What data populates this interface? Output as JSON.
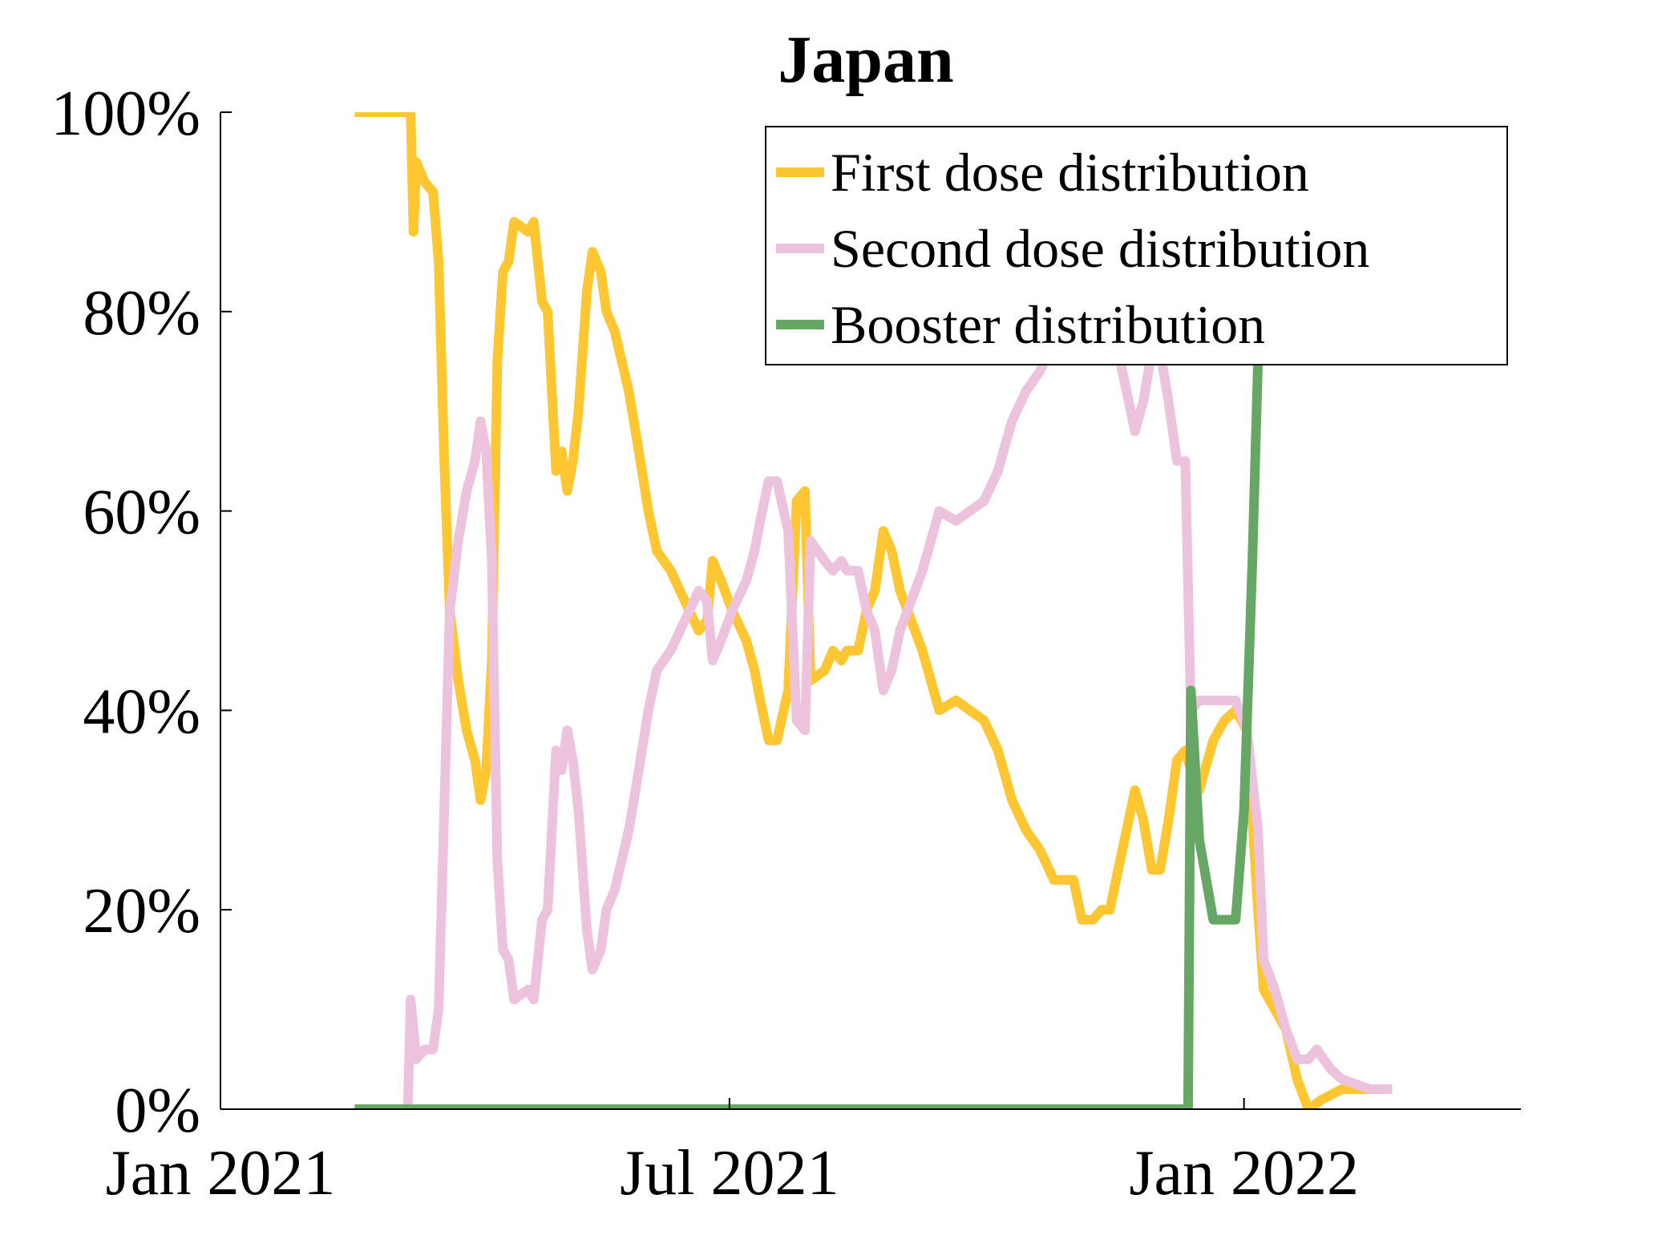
{
  "chart_data": {
    "type": "line",
    "title": "Japan",
    "xlabel": "",
    "ylabel": "",
    "x_unit": "date",
    "xlim": [
      "2020-12-31",
      "2022-04-10"
    ],
    "ylim": [
      0,
      100
    ],
    "x_ticks": [
      {
        "date": "2020-12-31",
        "label": "Jan 2021"
      },
      {
        "date": "2021-07-01",
        "label": "Jul 2021"
      },
      {
        "date": "2022-01-01",
        "label": "Jan 2022"
      }
    ],
    "y_ticks": [
      {
        "value": 0,
        "label": "0%"
      },
      {
        "value": 20,
        "label": "20%"
      },
      {
        "value": 40,
        "label": "40%"
      },
      {
        "value": 60,
        "label": "60%"
      },
      {
        "value": 80,
        "label": "80%"
      },
      {
        "value": 100,
        "label": "100%"
      }
    ],
    "grid": false,
    "legend_position": "top-right",
    "series": [
      {
        "name": "First dose distribution",
        "color": "#FEC630",
        "points": [
          [
            "2021-02-17",
            100
          ],
          [
            "2021-03-09",
            100
          ],
          [
            "2021-03-10",
            88
          ],
          [
            "2021-03-11",
            95
          ],
          [
            "2021-03-14",
            93
          ],
          [
            "2021-03-17",
            92
          ],
          [
            "2021-03-19",
            85
          ],
          [
            "2021-03-21",
            65
          ],
          [
            "2021-03-23",
            50
          ],
          [
            "2021-03-26",
            43
          ],
          [
            "2021-03-29",
            38
          ],
          [
            "2021-04-01",
            35
          ],
          [
            "2021-04-03",
            31
          ],
          [
            "2021-04-05",
            34
          ],
          [
            "2021-04-07",
            45
          ],
          [
            "2021-04-09",
            75
          ],
          [
            "2021-04-11",
            84
          ],
          [
            "2021-04-13",
            85
          ],
          [
            "2021-04-15",
            89
          ],
          [
            "2021-04-20",
            88
          ],
          [
            "2021-04-22",
            89
          ],
          [
            "2021-04-25",
            81
          ],
          [
            "2021-04-27",
            80
          ],
          [
            "2021-04-30",
            64
          ],
          [
            "2021-05-02",
            66
          ],
          [
            "2021-05-04",
            62
          ],
          [
            "2021-05-06",
            65
          ],
          [
            "2021-05-08",
            70
          ],
          [
            "2021-05-11",
            82
          ],
          [
            "2021-05-13",
            86
          ],
          [
            "2021-05-16",
            84
          ],
          [
            "2021-05-18",
            80
          ],
          [
            "2021-05-21",
            78
          ],
          [
            "2021-05-26",
            72
          ],
          [
            "2021-05-29",
            67
          ],
          [
            "2021-06-02",
            60
          ],
          [
            "2021-06-05",
            56
          ],
          [
            "2021-06-10",
            54
          ],
          [
            "2021-06-15",
            51
          ],
          [
            "2021-06-20",
            48
          ],
          [
            "2021-06-23",
            49
          ],
          [
            "2021-06-25",
            55
          ],
          [
            "2021-06-28",
            53
          ],
          [
            "2021-07-02",
            50
          ],
          [
            "2021-07-07",
            47
          ],
          [
            "2021-07-10",
            44
          ],
          [
            "2021-07-12",
            41
          ],
          [
            "2021-07-15",
            37
          ],
          [
            "2021-07-18",
            37
          ],
          [
            "2021-07-22",
            42
          ],
          [
            "2021-07-25",
            61
          ],
          [
            "2021-07-28",
            62
          ],
          [
            "2021-07-30",
            43
          ],
          [
            "2021-08-04",
            44
          ],
          [
            "2021-08-07",
            46
          ],
          [
            "2021-08-10",
            45
          ],
          [
            "2021-08-12",
            46
          ],
          [
            "2021-08-16",
            46
          ],
          [
            "2021-08-19",
            50
          ],
          [
            "2021-08-22",
            52
          ],
          [
            "2021-08-25",
            58
          ],
          [
            "2021-08-28",
            56
          ],
          [
            "2021-08-31",
            52
          ],
          [
            "2021-09-04",
            49
          ],
          [
            "2021-09-08",
            46
          ],
          [
            "2021-09-14",
            40
          ],
          [
            "2021-09-20",
            41
          ],
          [
            "2021-09-25",
            40
          ],
          [
            "2021-09-30",
            39
          ],
          [
            "2021-10-05",
            36
          ],
          [
            "2021-10-10",
            31
          ],
          [
            "2021-10-15",
            28
          ],
          [
            "2021-10-20",
            26
          ],
          [
            "2021-10-25",
            23
          ],
          [
            "2021-11-01",
            23
          ],
          [
            "2021-11-04",
            19
          ],
          [
            "2021-11-08",
            19
          ],
          [
            "2021-11-11",
            20
          ],
          [
            "2021-11-14",
            20
          ],
          [
            "2021-11-17",
            24
          ],
          [
            "2021-11-20",
            28
          ],
          [
            "2021-11-23",
            32
          ],
          [
            "2021-11-26",
            29
          ],
          [
            "2021-11-29",
            24
          ],
          [
            "2021-12-02",
            24
          ],
          [
            "2021-12-05",
            29
          ],
          [
            "2021-12-08",
            35
          ],
          [
            "2021-12-11",
            36
          ],
          [
            "2021-12-13",
            34
          ],
          [
            "2021-12-16",
            32
          ],
          [
            "2021-12-21",
            37
          ],
          [
            "2021-12-25",
            39
          ],
          [
            "2021-12-29",
            40
          ],
          [
            "2022-01-02",
            38
          ],
          [
            "2022-01-06",
            20
          ],
          [
            "2022-01-08",
            12
          ],
          [
            "2022-01-12",
            10
          ],
          [
            "2022-01-16",
            8
          ],
          [
            "2022-01-20",
            3
          ],
          [
            "2022-01-24",
            0
          ],
          [
            "2022-01-29",
            1
          ],
          [
            "2022-02-05",
            2
          ],
          [
            "2022-02-15",
            2
          ],
          [
            "2022-02-23",
            2
          ]
        ]
      },
      {
        "name": "Second dose distribution",
        "color": "#EDC2DC",
        "points": [
          [
            "2021-03-08",
            0
          ],
          [
            "2021-03-09",
            11
          ],
          [
            "2021-03-11",
            5
          ],
          [
            "2021-03-14",
            6
          ],
          [
            "2021-03-17",
            6
          ],
          [
            "2021-03-19",
            10
          ],
          [
            "2021-03-21",
            30
          ],
          [
            "2021-03-23",
            50
          ],
          [
            "2021-03-26",
            57
          ],
          [
            "2021-03-29",
            62
          ],
          [
            "2021-04-01",
            65
          ],
          [
            "2021-04-03",
            69
          ],
          [
            "2021-04-05",
            66
          ],
          [
            "2021-04-07",
            55
          ],
          [
            "2021-04-09",
            25
          ],
          [
            "2021-04-11",
            16
          ],
          [
            "2021-04-13",
            15
          ],
          [
            "2021-04-15",
            11
          ],
          [
            "2021-04-20",
            12
          ],
          [
            "2021-04-22",
            11
          ],
          [
            "2021-04-25",
            19
          ],
          [
            "2021-04-27",
            20
          ],
          [
            "2021-04-30",
            36
          ],
          [
            "2021-05-02",
            34
          ],
          [
            "2021-05-04",
            38
          ],
          [
            "2021-05-06",
            35
          ],
          [
            "2021-05-08",
            30
          ],
          [
            "2021-05-11",
            18
          ],
          [
            "2021-05-13",
            14
          ],
          [
            "2021-05-16",
            16
          ],
          [
            "2021-05-18",
            20
          ],
          [
            "2021-05-21",
            22
          ],
          [
            "2021-05-26",
            28
          ],
          [
            "2021-05-29",
            33
          ],
          [
            "2021-06-02",
            40
          ],
          [
            "2021-06-05",
            44
          ],
          [
            "2021-06-10",
            46
          ],
          [
            "2021-06-15",
            49
          ],
          [
            "2021-06-20",
            52
          ],
          [
            "2021-06-23",
            51
          ],
          [
            "2021-06-25",
            45
          ],
          [
            "2021-06-28",
            47
          ],
          [
            "2021-07-02",
            50
          ],
          [
            "2021-07-07",
            53
          ],
          [
            "2021-07-10",
            56
          ],
          [
            "2021-07-12",
            59
          ],
          [
            "2021-07-15",
            63
          ],
          [
            "2021-07-18",
            63
          ],
          [
            "2021-07-22",
            58
          ],
          [
            "2021-07-25",
            39
          ],
          [
            "2021-07-28",
            38
          ],
          [
            "2021-07-30",
            57
          ],
          [
            "2021-08-04",
            55
          ],
          [
            "2021-08-07",
            54
          ],
          [
            "2021-08-10",
            55
          ],
          [
            "2021-08-12",
            54
          ],
          [
            "2021-08-16",
            54
          ],
          [
            "2021-08-19",
            50
          ],
          [
            "2021-08-22",
            48
          ],
          [
            "2021-08-25",
            42
          ],
          [
            "2021-08-28",
            44
          ],
          [
            "2021-08-31",
            48
          ],
          [
            "2021-09-04",
            51
          ],
          [
            "2021-09-08",
            54
          ],
          [
            "2021-09-14",
            60
          ],
          [
            "2021-09-20",
            59
          ],
          [
            "2021-09-25",
            60
          ],
          [
            "2021-09-30",
            61
          ],
          [
            "2021-10-05",
            64
          ],
          [
            "2021-10-10",
            69
          ],
          [
            "2021-10-15",
            72
          ],
          [
            "2021-10-20",
            74
          ],
          [
            "2021-10-25",
            77
          ],
          [
            "2021-11-01",
            77
          ],
          [
            "2021-11-04",
            81
          ],
          [
            "2021-11-08",
            81
          ],
          [
            "2021-11-11",
            80
          ],
          [
            "2021-11-14",
            80
          ],
          [
            "2021-11-17",
            76
          ],
          [
            "2021-11-20",
            72
          ],
          [
            "2021-11-23",
            68
          ],
          [
            "2021-11-26",
            71
          ],
          [
            "2021-11-29",
            76
          ],
          [
            "2021-12-02",
            76
          ],
          [
            "2021-12-05",
            71
          ],
          [
            "2021-12-08",
            65
          ],
          [
            "2021-12-11",
            65
          ],
          [
            "2021-12-13",
            40
          ],
          [
            "2021-12-16",
            41
          ],
          [
            "2021-12-21",
            41
          ],
          [
            "2021-12-25",
            41
          ],
          [
            "2021-12-29",
            41
          ],
          [
            "2022-01-02",
            38
          ],
          [
            "2022-01-06",
            28
          ],
          [
            "2022-01-08",
            15
          ],
          [
            "2022-01-12",
            12
          ],
          [
            "2022-01-16",
            8
          ],
          [
            "2022-01-20",
            5
          ],
          [
            "2022-01-24",
            5
          ],
          [
            "2022-01-27",
            6
          ],
          [
            "2022-02-01",
            4
          ],
          [
            "2022-02-05",
            3
          ],
          [
            "2022-02-15",
            2
          ],
          [
            "2022-02-23",
            2
          ]
        ]
      },
      {
        "name": "Booster distribution",
        "color": "#66A766",
        "points": [
          [
            "2021-02-17",
            0
          ],
          [
            "2021-12-12",
            0
          ],
          [
            "2021-12-13",
            42
          ],
          [
            "2021-12-16",
            27
          ],
          [
            "2021-12-21",
            19
          ],
          [
            "2021-12-25",
            19
          ],
          [
            "2021-12-29",
            19
          ],
          [
            "2022-01-01",
            30
          ],
          [
            "2022-01-04",
            55
          ],
          [
            "2022-01-06",
            75
          ],
          [
            "2022-01-09",
            90
          ]
        ]
      }
    ]
  }
}
